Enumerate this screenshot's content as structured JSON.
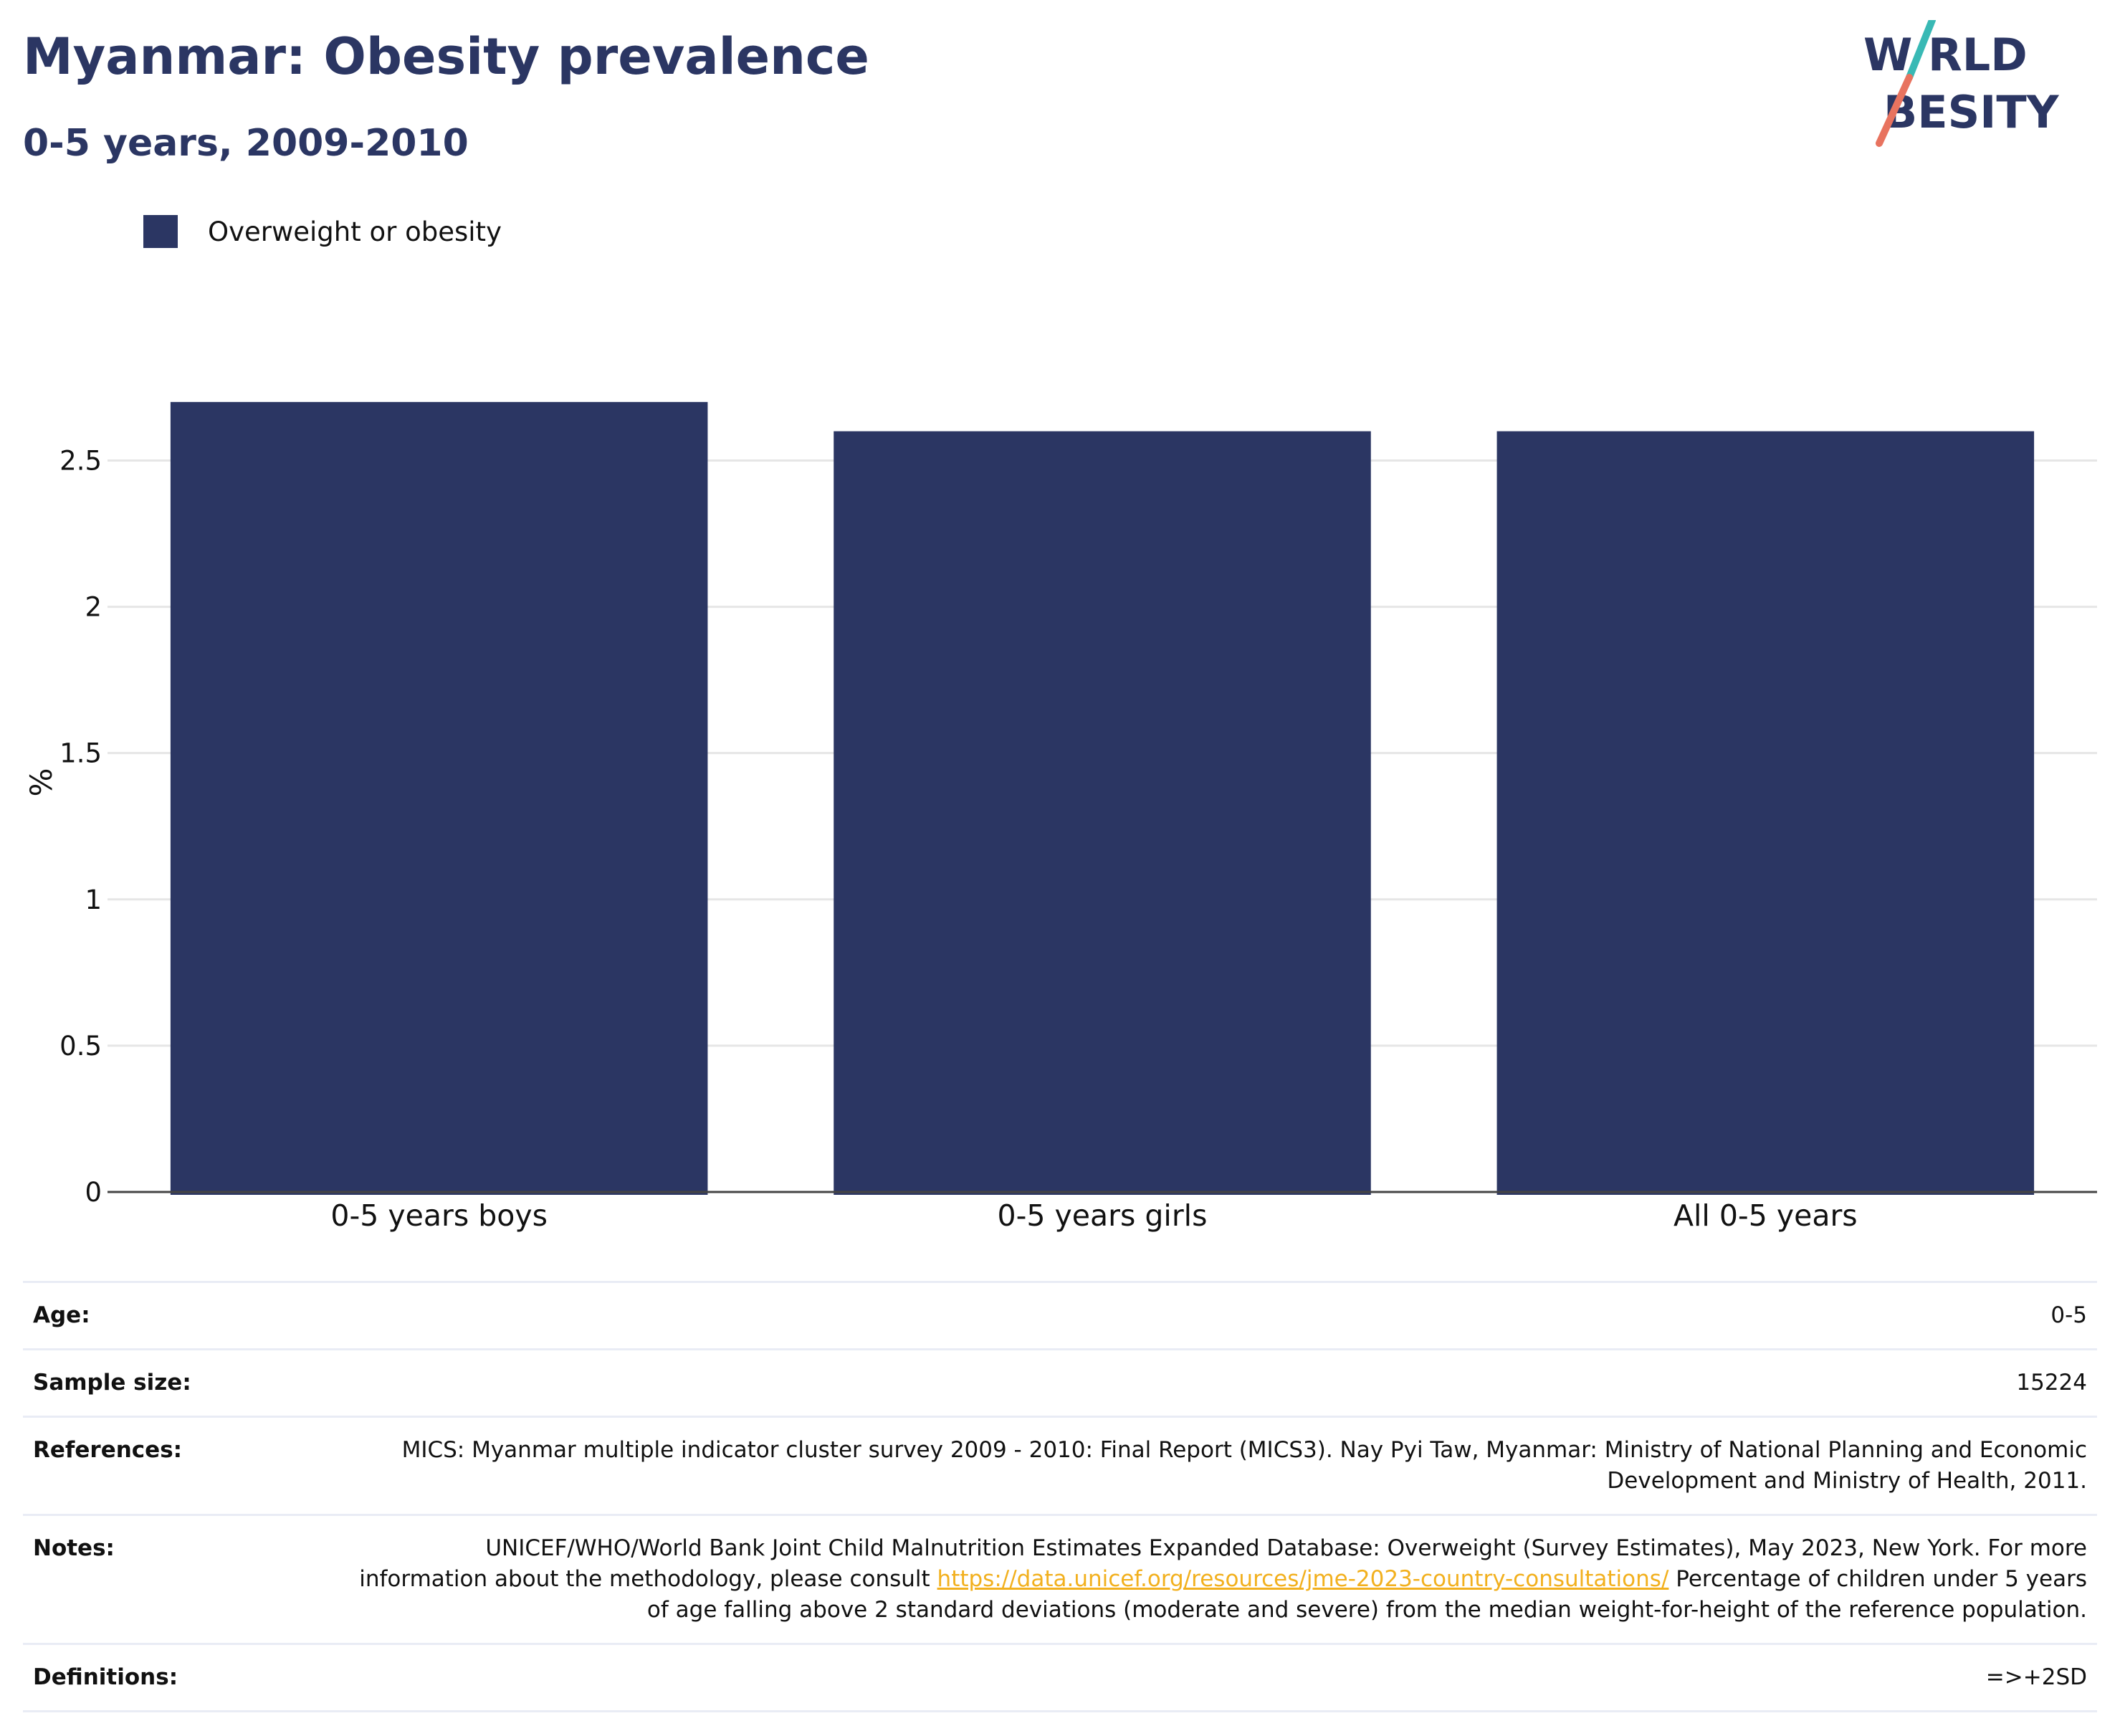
{
  "header": {
    "title": "Myanmar: Obesity prevalence",
    "subtitle": "0-5 years, 2009-2010"
  },
  "logo": {
    "line1": "W RLD",
    "line2": "BESITY",
    "text_color": "#2b3663",
    "slash_top_color": "#39b9b5",
    "slash_bottom_color": "#e8735f"
  },
  "legend": {
    "label": "Overweight or obesity",
    "color": "#2b3663"
  },
  "chart_data": {
    "type": "bar",
    "categories": [
      "0-5 years boys",
      "0-5 years girls",
      "All 0-5 years"
    ],
    "series": [
      {
        "name": "Overweight or obesity",
        "values": [
          2.7,
          2.6,
          2.6
        ],
        "color": "#2b3663"
      }
    ],
    "ylabel": "%",
    "ylim": [
      0,
      2.8
    ],
    "yticks": [
      0,
      0.5,
      1,
      1.5,
      2,
      2.5
    ],
    "ytick_labels": [
      "0",
      "0.5",
      "1",
      "1.5",
      "2",
      "2.5"
    ],
    "grid": true,
    "legend_position": "top-left"
  },
  "info": {
    "age_label": "Age:",
    "age_value": "0-5",
    "sample_label": "Sample size:",
    "sample_value": "15224",
    "references_label": "References:",
    "references_value": "MICS: Myanmar multiple indicator cluster survey 2009 - 2010: Final Report (MICS3). Nay Pyi Taw, Myanmar: Ministry of National Planning and Economic Development and Ministry of Health, 2011.",
    "notes_label": "Notes:",
    "notes_text_1": "UNICEF/WHO/World Bank Joint Child Malnutrition Estimates Expanded Database: Overweight (Survey Estimates), May 2023, New York. For more information about the methodology, please consult",
    "notes_link": "https://data.unicef.org/resources/jme-2023-country-consultations/",
    "notes_text_2": "Percentage of children under 5 years of age falling above 2 standard deviations (moderate and severe) from the median weight-for-height of the reference population.",
    "definitions_label": "Definitions:",
    "definitions_value": "=>+2SD"
  }
}
